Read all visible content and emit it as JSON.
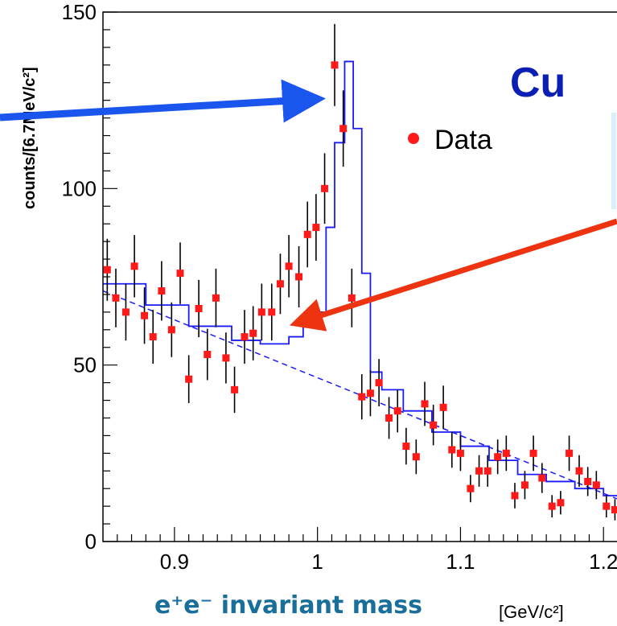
{
  "chart_data": {
    "type": "scatter",
    "ylabel": "counts/[6.7MeV/c²]",
    "xlabel": "e⁺e⁻ invariant mass",
    "xunit": "[GeV/c²]",
    "annotation": "Cu",
    "xlim": [
      0.85,
      1.21
    ],
    "ylim": [
      0,
      150
    ],
    "xticks": [
      0.9,
      1.0,
      1.1,
      1.2
    ],
    "xtick_labels": [
      "0.9",
      "1",
      "1.1",
      "1.2"
    ],
    "yticks": [
      0,
      50,
      100,
      150
    ],
    "ytick_labels": [
      "0",
      "50",
      "100",
      "150"
    ],
    "legend": {
      "position": "upper-right",
      "entries": [
        "Data"
      ]
    },
    "colors": {
      "data": "#ff1a1a",
      "fit": "#1a1aff",
      "errorbar": "#000000",
      "arrow_blue": "#1a55ee",
      "arrow_red": "#ee3311",
      "title_blue": "#0b1fb5",
      "xlabel_teal": "#1a6f9a"
    },
    "series": [
      {
        "name": "Data",
        "x": [
          0.853,
          0.859,
          0.866,
          0.872,
          0.879,
          0.885,
          0.891,
          0.898,
          0.904,
          0.91,
          0.917,
          0.923,
          0.929,
          0.936,
          0.942,
          0.949,
          0.955,
          0.961,
          0.968,
          0.974,
          0.98,
          0.987,
          0.993,
          0.999,
          1.005,
          1.012,
          1.018,
          1.024,
          1.031,
          1.037,
          1.043,
          1.05,
          1.056,
          1.062,
          1.069,
          1.075,
          1.081,
          1.088,
          1.094,
          1.1,
          1.107,
          1.113,
          1.119,
          1.126,
          1.132,
          1.138,
          1.145,
          1.151,
          1.157,
          1.164,
          1.17,
          1.176,
          1.183,
          1.189,
          1.195,
          1.202,
          1.208
        ],
        "y": [
          77,
          69,
          65,
          78,
          64,
          58,
          71,
          60,
          76,
          46,
          66,
          53,
          69,
          52,
          43,
          58,
          59,
          65,
          65,
          73,
          78,
          75,
          87,
          89,
          100,
          135,
          117,
          69,
          41,
          42,
          45,
          35,
          37,
          27,
          24,
          39,
          33,
          38,
          26,
          25,
          15,
          20,
          20,
          24,
          25,
          13,
          16,
          25,
          18,
          10,
          11,
          25,
          20,
          17,
          16,
          10,
          9
        ]
      },
      {
        "name": "",
        "style": "step",
        "x": [
          0.85,
          0.88,
          0.91,
          0.94,
          0.96,
          0.97,
          0.98,
          0.99,
          1.0,
          1.006,
          1.012,
          1.019,
          1.025,
          1.031,
          1.037,
          1.045,
          1.06,
          1.08,
          1.1,
          1.12,
          1.14,
          1.16,
          1.18,
          1.2,
          1.21
        ],
        "y": [
          73,
          67,
          61,
          57,
          56,
          56,
          58,
          62,
          65,
          89,
          113,
          136,
          117,
          76,
          48,
          43,
          37,
          31,
          27,
          23,
          19,
          17,
          15,
          13,
          12
        ]
      },
      {
        "name": "",
        "style": "dashed",
        "x": [
          0.85,
          1.21
        ],
        "y": [
          71,
          12
        ]
      }
    ]
  }
}
